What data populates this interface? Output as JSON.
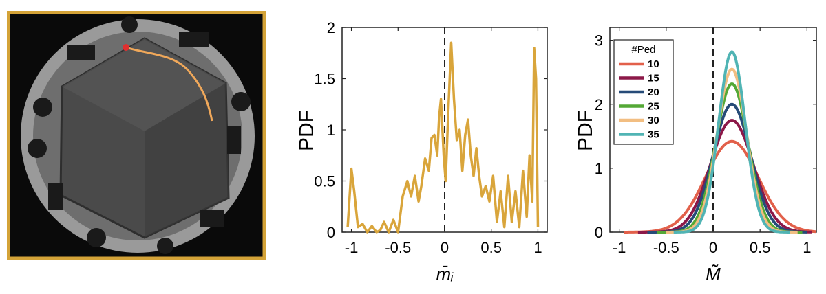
{
  "photo": {
    "frame_color": "#d4a338",
    "trajectory_color": "#f0a85a",
    "start_marker_color": "#e03030"
  },
  "chart_data": [
    {
      "type": "line",
      "xlabel": "m̄ᵢ",
      "ylabel": "PDF",
      "xlim": [
        -1.1,
        1.1
      ],
      "ylim": [
        0,
        2
      ],
      "xticks": [
        "-1",
        "-0.5",
        "0",
        "0.5",
        "1"
      ],
      "yticks": [
        "0",
        "0.5",
        "1",
        "1.5",
        "2"
      ],
      "ref_line_x": 0,
      "series": [
        {
          "color": "#d9a53b",
          "x": [
            -1.04,
            -1.0,
            -0.97,
            -0.93,
            -0.88,
            -0.83,
            -0.78,
            -0.73,
            -0.69,
            -0.65,
            -0.6,
            -0.55,
            -0.5,
            -0.45,
            -0.4,
            -0.36,
            -0.32,
            -0.28,
            -0.25,
            -0.21,
            -0.17,
            -0.14,
            -0.11,
            -0.08,
            -0.06,
            -0.04,
            -0.01,
            0.01,
            0.04,
            0.07,
            0.1,
            0.13,
            0.16,
            0.19,
            0.22,
            0.25,
            0.28,
            0.31,
            0.34,
            0.37,
            0.4,
            0.44,
            0.48,
            0.52,
            0.56,
            0.6,
            0.64,
            0.68,
            0.72,
            0.76,
            0.8,
            0.84,
            0.88,
            0.91,
            0.94,
            0.96,
            0.98,
            1.0
          ],
          "y": [
            0.05,
            0.62,
            0.4,
            0.05,
            0.08,
            0.0,
            0.06,
            0.0,
            0.02,
            0.1,
            0.0,
            0.12,
            0.0,
            0.35,
            0.5,
            0.35,
            0.55,
            0.3,
            0.45,
            0.72,
            0.6,
            0.92,
            0.95,
            0.75,
            1.12,
            1.3,
            0.75,
            0.5,
            1.2,
            1.85,
            1.3,
            0.9,
            1.0,
            0.6,
            0.95,
            1.1,
            0.75,
            0.55,
            0.82,
            0.55,
            0.35,
            0.45,
            0.3,
            0.55,
            0.1,
            0.4,
            0.05,
            0.55,
            0.1,
            0.4,
            0.05,
            0.6,
            0.15,
            0.75,
            0.3,
            1.8,
            1.5,
            0.05
          ]
        }
      ]
    },
    {
      "type": "line",
      "xlabel": "M̃",
      "ylabel": "PDF",
      "xlim": [
        -1.1,
        1.1
      ],
      "ylim": [
        0,
        3.2
      ],
      "xticks": [
        "-1",
        "-0.5",
        "0",
        "0.5",
        "1"
      ],
      "yticks": [
        "0",
        "1",
        "2",
        "3"
      ],
      "ref_line_x": 0,
      "legend_title": "#Ped",
      "legend_position": "top-left",
      "series": [
        {
          "name": "10",
          "color": "#e2604a",
          "mu": 0.2,
          "peak": 1.42,
          "xmin": -0.95,
          "xmax": 1.1
        },
        {
          "name": "15",
          "color": "#8c1848",
          "mu": 0.2,
          "peak": 1.75,
          "xmin": -0.8,
          "xmax": 1.05
        },
        {
          "name": "20",
          "color": "#264b78",
          "mu": 0.2,
          "peak": 2.0,
          "xmin": -0.7,
          "xmax": 1.0
        },
        {
          "name": "25",
          "color": "#54a836",
          "mu": 0.2,
          "peak": 2.32,
          "xmin": -0.6,
          "xmax": 0.95
        },
        {
          "name": "30",
          "color": "#f2be82",
          "mu": 0.2,
          "peak": 2.55,
          "xmin": -0.5,
          "xmax": 0.9
        },
        {
          "name": "35",
          "color": "#50b4b4",
          "mu": 0.2,
          "peak": 2.82,
          "xmin": -0.42,
          "xmax": 0.82
        }
      ]
    }
  ]
}
